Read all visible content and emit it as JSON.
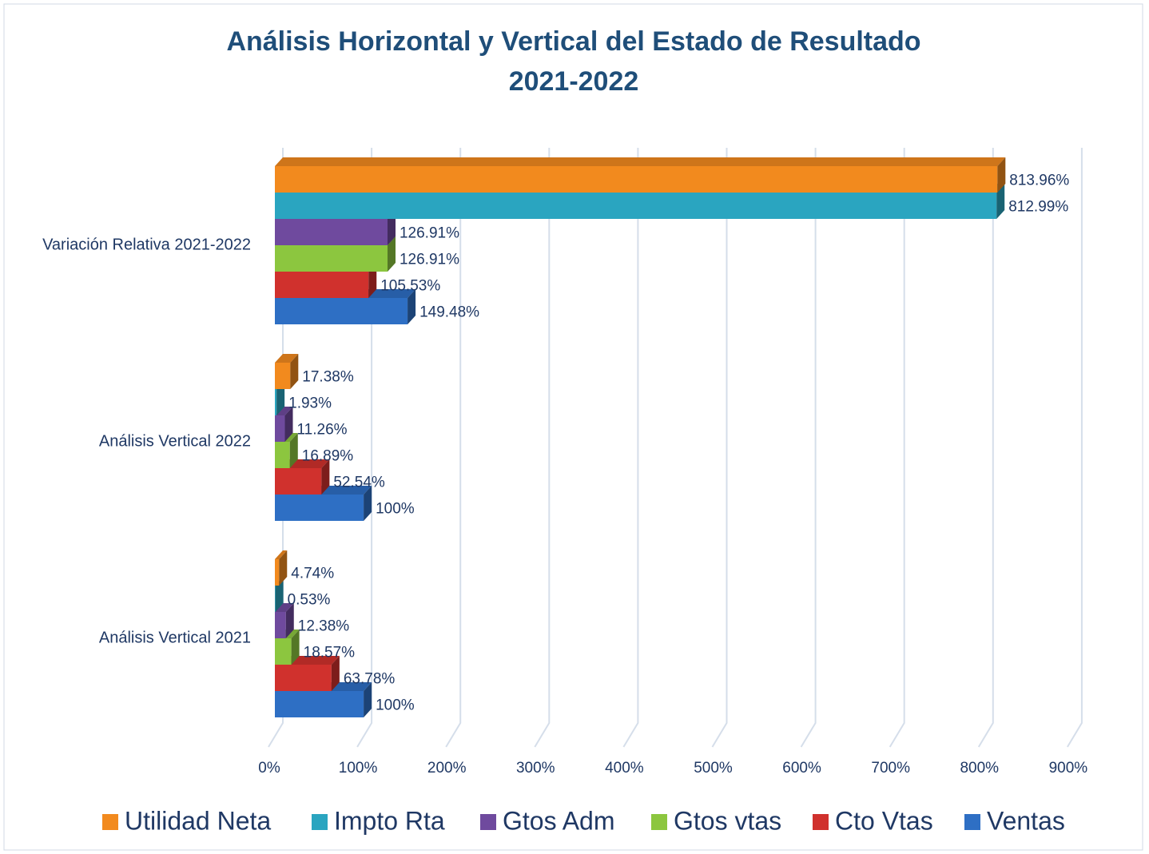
{
  "chart_data": {
    "type": "bar3d",
    "title": [
      "Análisis Horizontal y Vertical del Estado de Resultado",
      "2021-2022"
    ],
    "categories": [
      "Análisis Vertical 2021",
      "Análisis Vertical 2022",
      "Variación Relativa 2021-2022"
    ],
    "series": [
      {
        "name": "Ventas",
        "color": "#2e6fc4",
        "values": [
          100,
          100,
          149.48
        ],
        "value_labels": [
          "100%",
          "100%",
          "149.48%"
        ]
      },
      {
        "name": "Cto Vtas",
        "color": "#d0312d",
        "values": [
          63.78,
          52.54,
          105.53
        ],
        "value_labels": [
          "63.78%",
          "52.54%",
          "105.53%"
        ]
      },
      {
        "name": "Gtos vtas",
        "color": "#8cc63f",
        "values": [
          18.57,
          16.89,
          126.91
        ],
        "value_labels": [
          "18.57%",
          "16.89%",
          "126.91%"
        ]
      },
      {
        "name": "Gtos Adm",
        "color": "#6f4a9e",
        "values": [
          12.38,
          11.26,
          126.91
        ],
        "value_labels": [
          "12.38%",
          "11.26%",
          "126.91%"
        ]
      },
      {
        "name": "Impto Rta",
        "color": "#2aa5c0",
        "values": [
          0.53,
          1.93,
          812.99
        ],
        "value_labels": [
          "0.53%",
          "1.93%",
          "812.99%"
        ]
      },
      {
        "name": "Utilidad Neta",
        "color": "#f28a1e",
        "values": [
          4.74,
          17.38,
          813.96
        ],
        "value_labels": [
          "4.74%",
          "17.38%",
          "813.96%"
        ]
      }
    ],
    "xlim": [
      0,
      900
    ],
    "xticks": [
      {
        "value": 0,
        "label": "0%"
      },
      {
        "value": 100,
        "label": "100%"
      },
      {
        "value": 200,
        "label": "200%"
      },
      {
        "value": 300,
        "label": "300%"
      },
      {
        "value": 400,
        "label": "400%"
      },
      {
        "value": 500,
        "label": "500%"
      },
      {
        "value": 600,
        "label": "600%"
      },
      {
        "value": 700,
        "label": "700%"
      },
      {
        "value": 800,
        "label": "800%"
      },
      {
        "value": 900,
        "label": "900%"
      }
    ],
    "grid": true,
    "legend": "bottom"
  }
}
